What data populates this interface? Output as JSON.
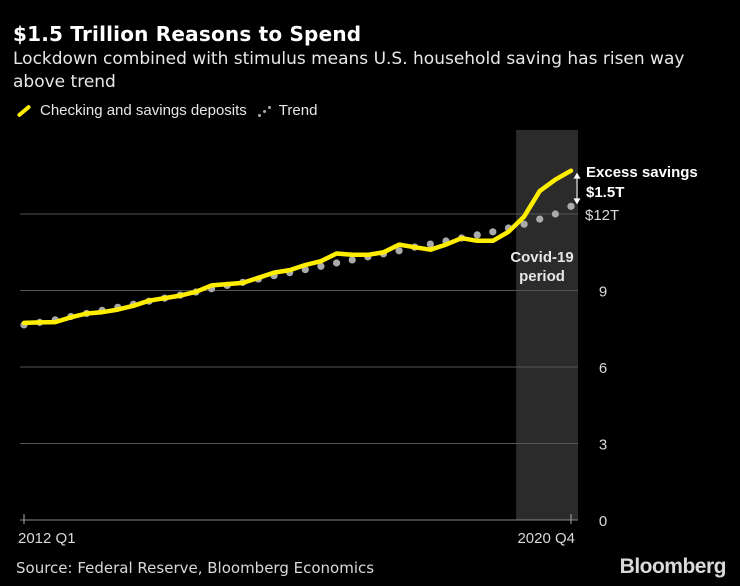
{
  "header": {
    "title": "$1.5 Trillion Reasons to Spend",
    "subtitle": "Lockdown combined with stimulus means U.S. household saving has risen way above trend"
  },
  "legend": {
    "items": [
      {
        "label": "Checking and savings deposits",
        "color": "#ffee00",
        "style": "solid"
      },
      {
        "label": "Trend",
        "color": "#aaaaaa",
        "style": "dotted"
      }
    ]
  },
  "footer": {
    "source": "Source: Federal Reserve, Bloomberg Economics",
    "brand": "Bloomberg"
  },
  "chart_data": {
    "type": "line",
    "title": "$1.5 Trillion Reasons to Spend",
    "subtitle": "Lockdown combined with stimulus means U.S. household saving has risen way above trend",
    "xlabel": "",
    "ylabel": "",
    "x_range": [
      "2012 Q1",
      "2020 Q4"
    ],
    "x_tick_labels": [
      "2012 Q1",
      "2020 Q4"
    ],
    "y_range": [
      0,
      14
    ],
    "y_ticks": [
      0,
      3,
      6,
      9,
      12
    ],
    "y_tick_labels": [
      "0",
      "3",
      "6",
      "9",
      "$12T"
    ],
    "y_axis_side": "right",
    "grid": true,
    "legend_position": "top-left",
    "x": [
      "2012 Q1",
      "2012 Q2",
      "2012 Q3",
      "2012 Q4",
      "2013 Q1",
      "2013 Q2",
      "2013 Q3",
      "2013 Q4",
      "2014 Q1",
      "2014 Q2",
      "2014 Q3",
      "2014 Q4",
      "2015 Q1",
      "2015 Q2",
      "2015 Q3",
      "2015 Q4",
      "2016 Q1",
      "2016 Q2",
      "2016 Q3",
      "2016 Q4",
      "2017 Q1",
      "2017 Q2",
      "2017 Q3",
      "2017 Q4",
      "2018 Q1",
      "2018 Q2",
      "2018 Q3",
      "2018 Q4",
      "2019 Q1",
      "2019 Q2",
      "2019 Q3",
      "2019 Q4",
      "2020 Q1",
      "2020 Q2",
      "2020 Q3",
      "2020 Q4"
    ],
    "series": [
      {
        "name": "Checking and savings deposits",
        "color": "#ffee00",
        "values": [
          7.73,
          7.75,
          7.76,
          7.95,
          8.1,
          8.15,
          8.25,
          8.4,
          8.6,
          8.7,
          8.8,
          8.95,
          9.2,
          9.25,
          9.3,
          9.5,
          9.7,
          9.8,
          10.0,
          10.15,
          10.45,
          10.4,
          10.4,
          10.5,
          10.8,
          10.7,
          10.6,
          10.8,
          11.05,
          10.95,
          10.95,
          11.3,
          11.9,
          12.9,
          13.35,
          13.7
        ]
      },
      {
        "name": "Trend",
        "color": "#aaaaaa",
        "values": [
          7.65,
          7.75,
          7.85,
          7.98,
          8.1,
          8.22,
          8.34,
          8.46,
          8.58,
          8.7,
          8.82,
          8.94,
          9.07,
          9.2,
          9.32,
          9.45,
          9.58,
          9.7,
          9.82,
          9.95,
          10.08,
          10.2,
          10.32,
          10.44,
          10.56,
          10.7,
          10.82,
          10.94,
          11.06,
          11.18,
          11.3,
          11.45,
          11.6,
          11.8,
          12.0,
          12.3
        ]
      }
    ],
    "shaded_region": {
      "label": "Covid-19 period",
      "from": "2020 Q1",
      "to": "2020 Q4",
      "color": "#2b2b2b"
    },
    "annotations": [
      {
        "text": "Excess savings",
        "at": "2020 Q4"
      },
      {
        "text": "$1.5T",
        "at": "2020 Q4",
        "value": 1.5
      }
    ]
  }
}
